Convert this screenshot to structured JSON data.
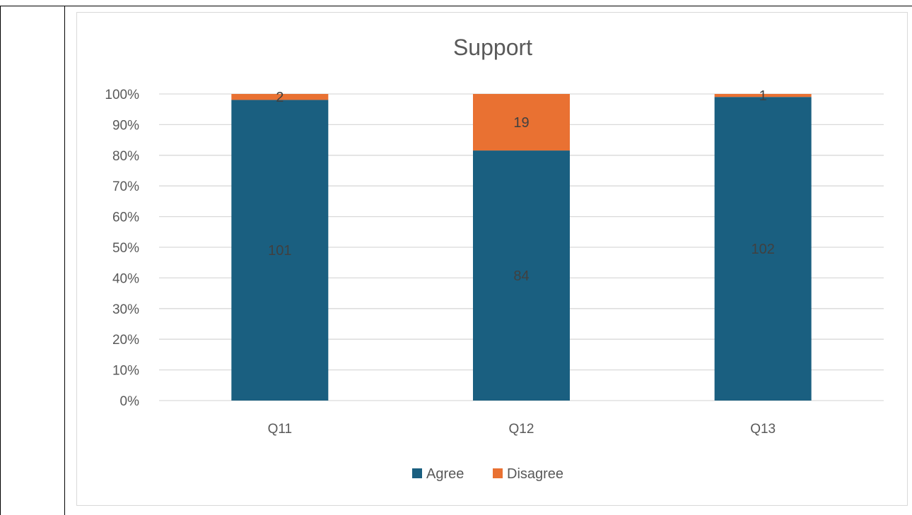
{
  "chart_data": {
    "type": "bar",
    "stacked": "percent",
    "title": "Support",
    "categories": [
      "Q11",
      "Q12",
      "Q13"
    ],
    "series": [
      {
        "name": "Agree",
        "values": [
          101,
          84,
          102
        ],
        "color": "#1a5f80"
      },
      {
        "name": "Disagree",
        "values": [
          2,
          19,
          1
        ],
        "color": "#e97132"
      }
    ],
    "yticks": [
      "0%",
      "10%",
      "20%",
      "30%",
      "40%",
      "50%",
      "60%",
      "70%",
      "80%",
      "90%",
      "100%"
    ],
    "ylim": [
      0,
      1
    ],
    "grid": true,
    "legend_position": "bottom"
  }
}
